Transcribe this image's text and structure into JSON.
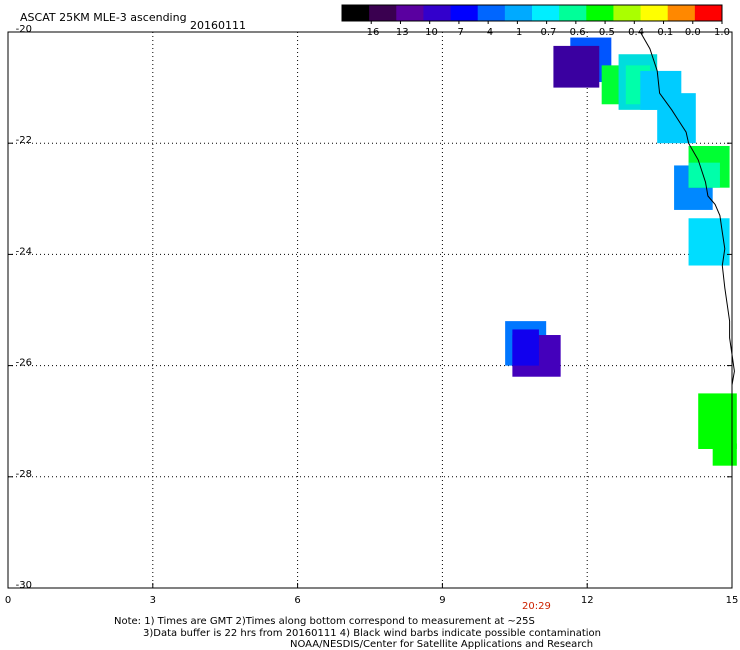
{
  "header": {
    "title": "ASCAT 25KM MLE-3 ascending",
    "date": "20160111"
  },
  "colorbar": {
    "labels": [
      "-16",
      "-13",
      "-10",
      "-7",
      "-4",
      "-1",
      "-0.7",
      "-0.6",
      "-0.5",
      "-0.4",
      "-0.1",
      "0.0",
      "1.0"
    ],
    "colors": [
      "#000000",
      "#3a0050",
      "#5a00a0",
      "#3300cc",
      "#0000ff",
      "#0066ff",
      "#00aaff",
      "#00eeff",
      "#00ff99",
      "#00ff00",
      "#aaff00",
      "#ffff00",
      "#ff8800",
      "#ff0000"
    ]
  },
  "axes": {
    "x_ticks": [
      "0",
      "3",
      "6",
      "9",
      "12",
      "15"
    ],
    "y_ticks": [
      "-20",
      "-22",
      "-24",
      "-26",
      "-28",
      "-30"
    ],
    "x_range": [
      0,
      15
    ],
    "y_range": [
      -30,
      -20
    ],
    "grid": true
  },
  "time_label": "20:29",
  "notes": {
    "line1": "Note: 1) Times are GMT 2)Times along bottom correspond to measurement at ~25S",
    "line2": "3)Data buffer is 22 hrs from 20160111 4) Black wind barbs indicate possible contamination",
    "line3": "NOAA/NESDIS/Center for Satellite Applications and Research"
  },
  "chart_data": {
    "type": "heatmap",
    "xlim": [
      0,
      15
    ],
    "ylim": [
      -30,
      -20
    ],
    "cells": [
      {
        "x0": 11.65,
        "x1": 12.5,
        "y0": -20.9,
        "y1": -20.1,
        "color": "#0055ff"
      },
      {
        "x0": 11.3,
        "x1": 12.25,
        "y0": -21.0,
        "y1": -20.25,
        "color": "#3a00a0"
      },
      {
        "x0": 12.3,
        "x1": 12.7,
        "y0": -21.3,
        "y1": -20.6,
        "color": "#00ff33"
      },
      {
        "x0": 12.65,
        "x1": 13.45,
        "y0": -21.4,
        "y1": -20.4,
        "color": "#00dddd"
      },
      {
        "x0": 12.8,
        "x1": 13.3,
        "y0": -21.3,
        "y1": -20.6,
        "color": "#00ffaa"
      },
      {
        "x0": 13.1,
        "x1": 13.95,
        "y0": -21.4,
        "y1": -20.7,
        "color": "#00ccff"
      },
      {
        "x0": 13.45,
        "x1": 14.25,
        "y0": -22.0,
        "y1": -21.1,
        "color": "#00ccff"
      },
      {
        "x0": 13.8,
        "x1": 14.6,
        "y0": -23.2,
        "y1": -22.4,
        "color": "#0088ff"
      },
      {
        "x0": 14.1,
        "x1": 14.95,
        "y0": -22.8,
        "y1": -22.05,
        "color": "#00ff33"
      },
      {
        "x0": 14.1,
        "x1": 14.75,
        "y0": -22.8,
        "y1": -22.35,
        "color": "#00ffaa"
      },
      {
        "x0": 14.1,
        "x1": 14.95,
        "y0": -24.2,
        "y1": -23.35,
        "color": "#00ddff"
      },
      {
        "x0": 10.3,
        "x1": 11.15,
        "y0": -26.0,
        "y1": -25.2,
        "color": "#0077ff"
      },
      {
        "x0": 10.45,
        "x1": 11.45,
        "y0": -26.2,
        "y1": -25.45,
        "color": "#4400bb"
      },
      {
        "x0": 10.45,
        "x1": 11.0,
        "y0": -26.0,
        "y1": -25.35,
        "color": "#1100ee"
      },
      {
        "x0": 14.3,
        "x1": 15.1,
        "y0": -27.5,
        "y1": -26.5,
        "color": "#00ff00"
      },
      {
        "x0": 14.6,
        "x1": 15.1,
        "y0": -27.8,
        "y1": -27.4,
        "color": "#00ff00"
      }
    ],
    "coastline": [
      [
        13.1,
        -20.0
      ],
      [
        13.3,
        -20.3
      ],
      [
        13.45,
        -20.7
      ],
      [
        13.5,
        -21.1
      ],
      [
        13.75,
        -21.4
      ],
      [
        13.9,
        -21.6
      ],
      [
        14.05,
        -21.8
      ],
      [
        14.1,
        -22.0
      ],
      [
        14.3,
        -22.3
      ],
      [
        14.45,
        -22.7
      ],
      [
        14.5,
        -22.95
      ],
      [
        14.65,
        -23.1
      ],
      [
        14.75,
        -23.3
      ],
      [
        14.8,
        -23.6
      ],
      [
        14.85,
        -23.9
      ],
      [
        14.8,
        -24.2
      ],
      [
        14.85,
        -24.6
      ],
      [
        14.9,
        -24.9
      ],
      [
        14.95,
        -25.2
      ],
      [
        14.95,
        -25.5
      ],
      [
        15.0,
        -25.8
      ],
      [
        15.05,
        -26.1
      ],
      [
        15.0,
        -26.35
      ]
    ]
  }
}
